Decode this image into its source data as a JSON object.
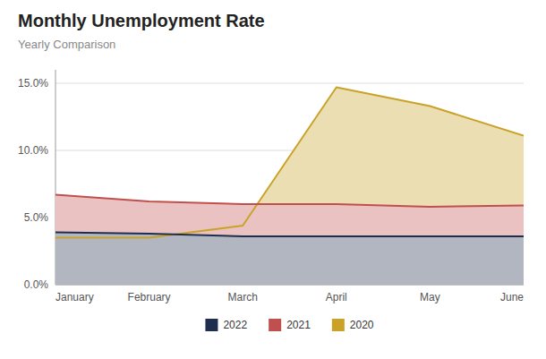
{
  "chart_data": {
    "type": "area",
    "title": "Monthly Unemployment Rate",
    "subtitle": "Yearly Comparison",
    "categories": [
      "January",
      "February",
      "March",
      "April",
      "May",
      "June"
    ],
    "series": [
      {
        "name": "2022",
        "color": "#1f2d4e",
        "values": [
          3.9,
          3.8,
          3.6,
          3.6,
          3.6,
          3.6
        ]
      },
      {
        "name": "2021",
        "color": "#c0504d",
        "values": [
          6.7,
          6.2,
          6.0,
          6.0,
          5.8,
          5.9
        ]
      },
      {
        "name": "2020",
        "color": "#c9a227",
        "values": [
          3.5,
          3.5,
          4.4,
          14.7,
          13.3,
          11.1
        ]
      }
    ],
    "ylim": [
      0,
      16
    ],
    "yticks": [
      {
        "value": 0.0,
        "label": "0.0%"
      },
      {
        "value": 5.0,
        "label": "5.0%"
      },
      {
        "value": 10.0,
        "label": "10.0%"
      },
      {
        "value": 15.0,
        "label": "15.0%"
      }
    ],
    "grid": true,
    "legend": "bottom"
  }
}
